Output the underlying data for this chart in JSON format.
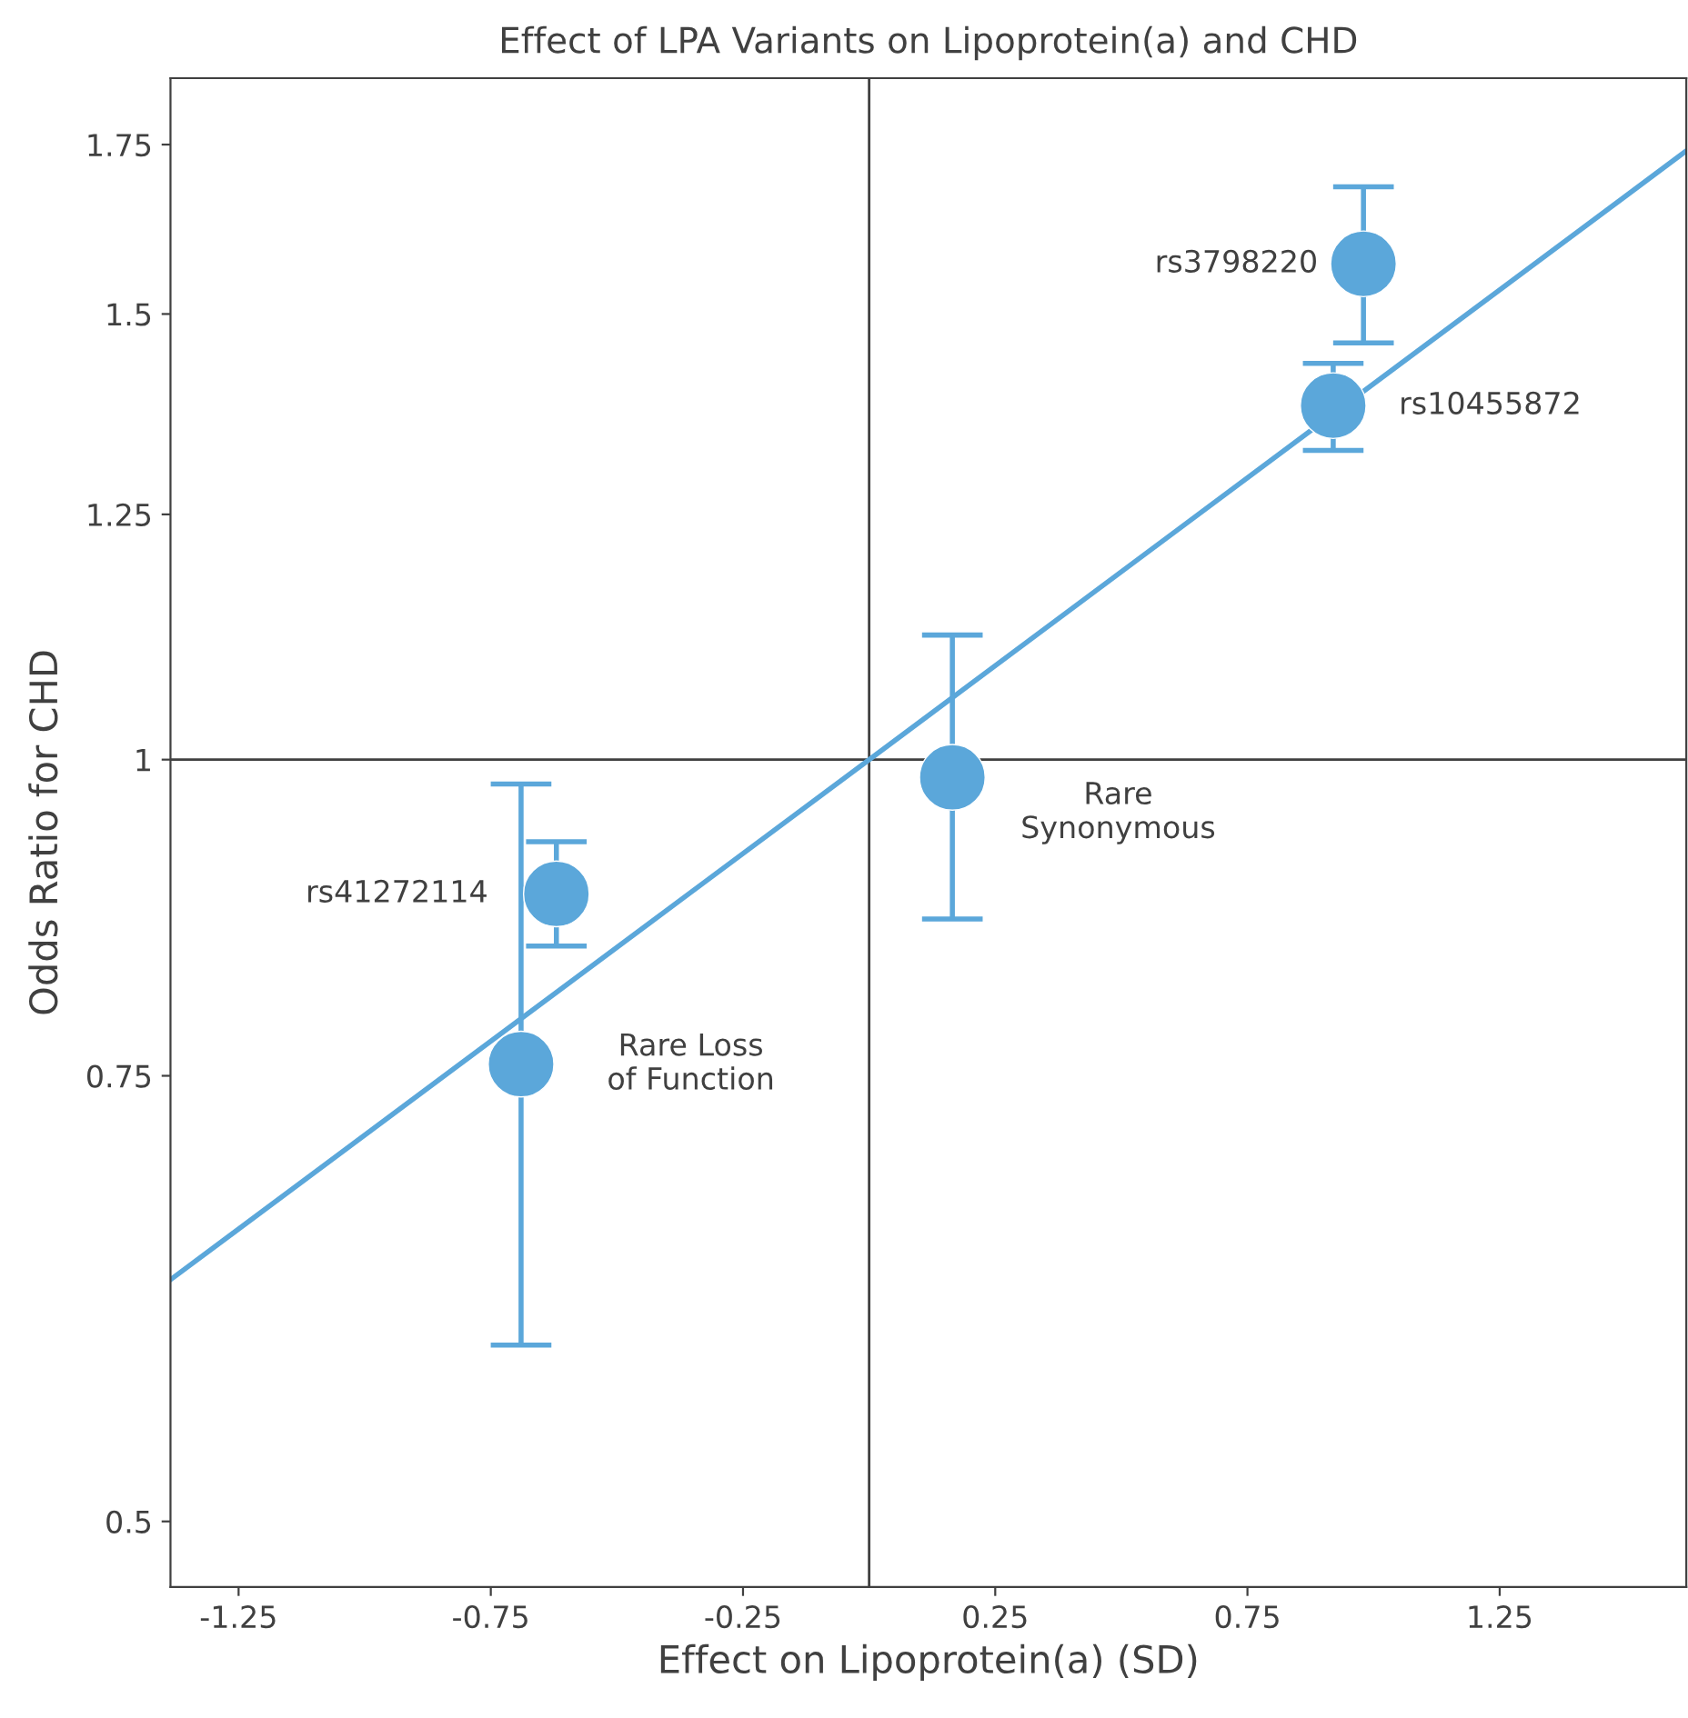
{
  "chart_data": {
    "type": "scatter",
    "title": "Effect of LPA Variants on Lipoprotein(a) and CHD",
    "xlabel": "Effect on Lipoprotein(a) (SD)",
    "ylabel": "Odds Ratio for CHD",
    "log": "y",
    "xlim": [
      -1.385,
      1.62
    ],
    "ylim": [
      0.471,
      1.859
    ],
    "xticks": [
      -1.25,
      -0.75,
      -0.25,
      0.25,
      0.75,
      1.25
    ],
    "yticks": [
      0.5,
      0.75,
      1,
      1.25,
      1.5,
      1.75
    ],
    "grid": false,
    "legend": false,
    "marker": "circle",
    "series": [
      {
        "color": "#5ba7da",
        "x": [
          -0.69,
          -0.62,
          0.165,
          0.98,
          0.92
        ],
        "values": [
          0.758,
          0.885,
          0.984,
          1.57,
          1.38
        ],
        "errors": [
          [
            0.587,
            0.978
          ],
          [
            0.844,
            0.928
          ],
          [
            0.865,
            1.12
          ],
          [
            1.461,
            1.684
          ],
          [
            1.325,
            1.434
          ]
        ]
      },
      {
        "type": "line",
        "color": "#5ba7da",
        "line_style": "solid",
        "marker": "none",
        "x": [
          -1.385,
          0,
          1.62
        ],
        "values": [
          0.623,
          1,
          1.74
        ]
      }
    ],
    "ref_lines": [
      {
        "axis": "x",
        "value": 0,
        "color": "#404040"
      },
      {
        "axis": "y",
        "value": 1,
        "color": "#404040"
      }
    ],
    "annotations": [
      {
        "text": "Rare Loss\nof Function",
        "x": -0.69,
        "y": 0.758
      },
      {
        "text": "rs41272114",
        "x": -0.62,
        "y": 0.885
      },
      {
        "text": "Rare\nSynonymous",
        "x": 0.165,
        "y": 0.984
      },
      {
        "text": "rs3798220",
        "x": 0.98,
        "y": 1.57
      },
      {
        "text": "rs10455872",
        "x": 0.92,
        "y": 1.38
      }
    ]
  }
}
